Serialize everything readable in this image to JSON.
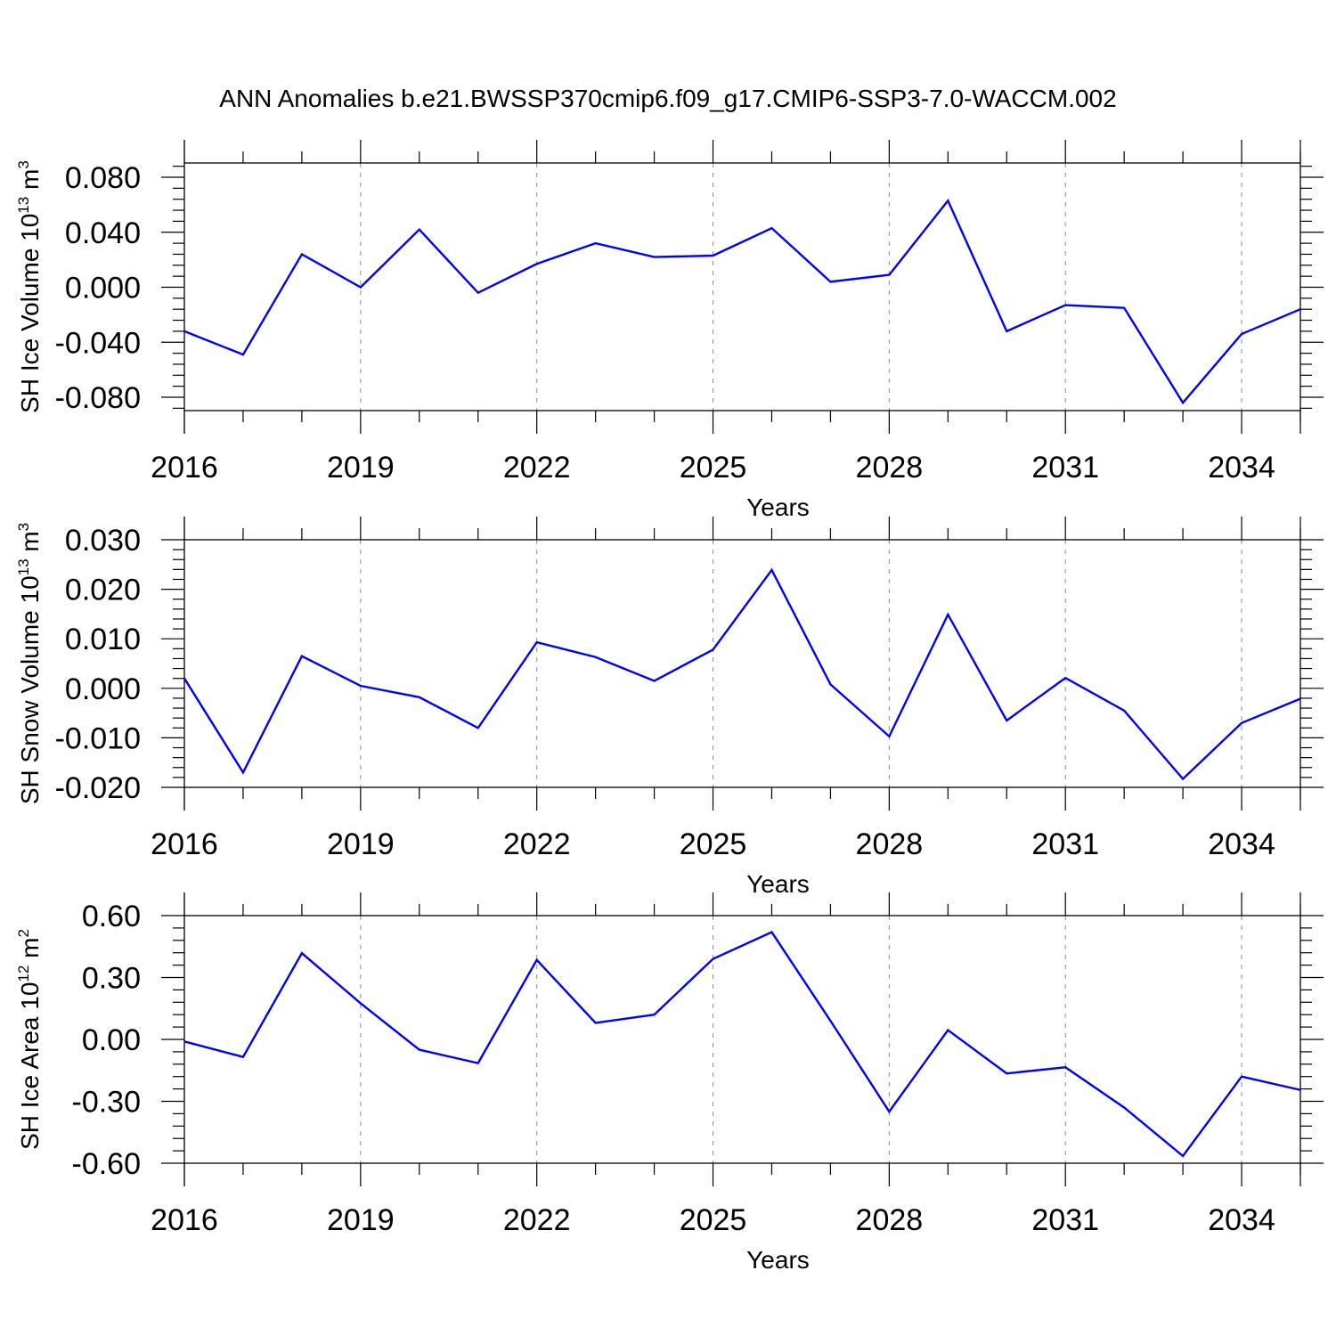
{
  "title": "ANN Anomalies b.e21.BWSSP370cmip6.f09_g17.CMIP6-SSP3-7.0-WACCM.002",
  "chart_data": [
    {
      "type": "line",
      "ylabel": {
        "main": "SH Ice Volume 10",
        "exp": "13",
        "unit": " m",
        "unit_exp": "3"
      },
      "xlabel": "Years",
      "xlim": [
        2016,
        2035
      ],
      "ylim": [
        -0.09,
        0.09
      ],
      "yticks": [
        -0.08,
        -0.04,
        0.0,
        0.04,
        0.08
      ],
      "ytick_labels": [
        "-0.080",
        "-0.040",
        "0.000",
        "0.040",
        "0.080"
      ],
      "xticks": [
        2016,
        2019,
        2022,
        2025,
        2028,
        2031,
        2034
      ],
      "xtick_labels": [
        "2016",
        "2019",
        "2022",
        "2025",
        "2028",
        "2031",
        "2034"
      ],
      "x": [
        2016,
        2017,
        2018,
        2019,
        2020,
        2021,
        2022,
        2023,
        2024,
        2025,
        2026,
        2027,
        2028,
        2029,
        2030,
        2031,
        2032,
        2033,
        2034,
        2035
      ],
      "series": [
        {
          "values": [
            -0.032,
            -0.049,
            0.024,
            0.0,
            0.042,
            -0.004,
            0.017,
            0.032,
            0.022,
            0.023,
            0.043,
            0.004,
            0.009,
            0.063,
            -0.032,
            -0.013,
            -0.015,
            -0.084,
            -0.034,
            -0.016
          ],
          "color": "#0000ff"
        }
      ]
    },
    {
      "type": "line",
      "ylabel": {
        "main": "SH Snow Volume 10",
        "exp": "13",
        "unit": " m",
        "unit_exp": "3"
      },
      "xlabel": "Years",
      "xlim": [
        2016,
        2035
      ],
      "ylim": [
        -0.02,
        0.03
      ],
      "yticks": [
        -0.02,
        -0.01,
        0.0,
        0.01,
        0.02,
        0.03
      ],
      "ytick_labels": [
        "-0.020",
        "-0.010",
        "0.000",
        "0.010",
        "0.020",
        "0.030"
      ],
      "xticks": [
        2016,
        2019,
        2022,
        2025,
        2028,
        2031,
        2034
      ],
      "xtick_labels": [
        "2016",
        "2019",
        "2022",
        "2025",
        "2028",
        "2031",
        "2034"
      ],
      "x": [
        2016,
        2017,
        2018,
        2019,
        2020,
        2021,
        2022,
        2023,
        2024,
        2025,
        2026,
        2027,
        2028,
        2029,
        2030,
        2031,
        2032,
        2033,
        2034,
        2035
      ],
      "series": [
        {
          "values": [
            0.002,
            -0.017,
            0.0065,
            0.0005,
            -0.0018,
            -0.008,
            0.0093,
            0.0063,
            0.0015,
            0.0078,
            0.0239,
            0.0008,
            -0.0097,
            0.0149,
            -0.0065,
            0.0021,
            -0.0045,
            -0.0183,
            -0.007,
            -0.0021
          ],
          "color": "#0000ff"
        }
      ]
    },
    {
      "type": "line",
      "ylabel": {
        "main": "SH Ice Area 10",
        "exp": "12",
        "unit": " m",
        "unit_exp": "2"
      },
      "xlabel": "Years",
      "xlim": [
        2016,
        2035
      ],
      "ylim": [
        -0.6,
        0.6
      ],
      "yticks": [
        -0.6,
        -0.3,
        0.0,
        0.3,
        0.6
      ],
      "ytick_labels": [
        "-0.60",
        "-0.30",
        "0.00",
        "0.30",
        "0.60"
      ],
      "xticks": [
        2016,
        2019,
        2022,
        2025,
        2028,
        2031,
        2034
      ],
      "xtick_labels": [
        "2016",
        "2019",
        "2022",
        "2025",
        "2028",
        "2031",
        "2034"
      ],
      "x": [
        2016,
        2017,
        2018,
        2019,
        2020,
        2021,
        2022,
        2023,
        2024,
        2025,
        2026,
        2027,
        2028,
        2029,
        2030,
        2031,
        2032,
        2033,
        2034,
        2035
      ],
      "series": [
        {
          "values": [
            -0.01,
            -0.085,
            0.418,
            0.175,
            -0.05,
            -0.115,
            0.385,
            0.08,
            0.12,
            0.39,
            0.52,
            0.09,
            -0.35,
            0.045,
            -0.165,
            -0.135,
            -0.33,
            -0.565,
            -0.18,
            -0.245
          ],
          "color": "#0000ff"
        }
      ]
    }
  ]
}
